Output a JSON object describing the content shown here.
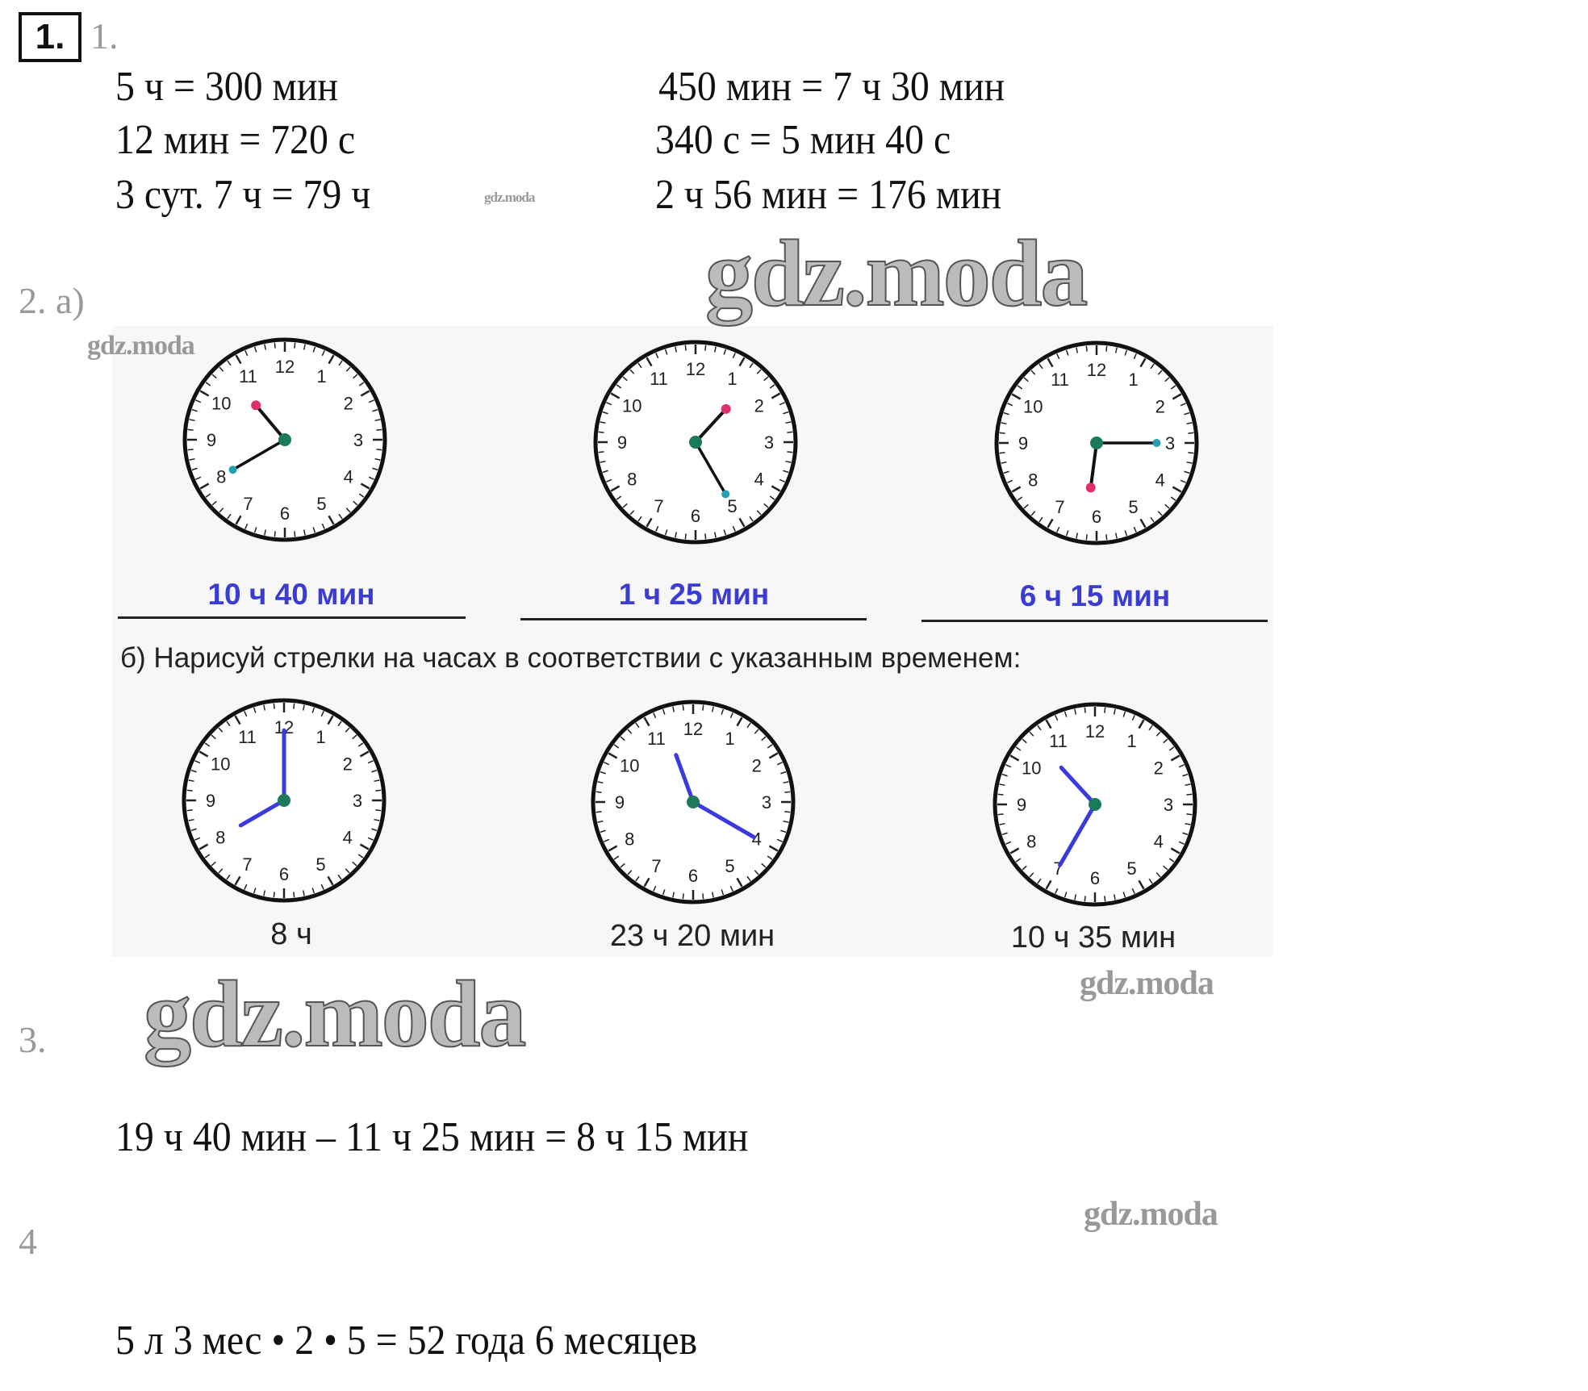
{
  "task1": {
    "badge": "1.",
    "label": "1.",
    "left": [
      "5 ч = 300 мин",
      "12 мин = 720 с",
      "3 сут. 7 ч = 79 ч"
    ],
    "right": [
      "450 мин = 7 ч 30 мин",
      "340 с = 5 мин 40 с",
      "2 ч 56 мин = 176 мин"
    ]
  },
  "task2": {
    "label_a": "2. а)",
    "clocks_a": [
      {
        "label": "10 ч 40 мин",
        "hour": 10,
        "minute": 40
      },
      {
        "label": "1 ч 25 мин",
        "hour": 1,
        "minute": 25
      },
      {
        "label": "6 ч 15 мин",
        "hour": 6,
        "minute": 15
      }
    ],
    "instruction_b": "б) Нарисуй стрелки на часах в соответствии с указанным временем:",
    "clocks_b": [
      {
        "label": "8 ч",
        "hour": 8,
        "minute": 0
      },
      {
        "label": "23 ч 20 мин",
        "hour": 23,
        "minute": 20
      },
      {
        "label": "10 ч 35 мин",
        "hour": 10,
        "minute": 35
      }
    ]
  },
  "task3": {
    "label": "3.",
    "equation": "19 ч 40 мин – 11 ч 25 мин = 8 ч 15 мин"
  },
  "task4": {
    "label": "4",
    "equation": "5 л 3 мес • 2 • 5 = 52 года 6 месяцев"
  },
  "watermarks": [
    "gdz.moda",
    "gdz.moda",
    "gdz.moda",
    "gdz.moda",
    "gdz.moda",
    "gdz.moda"
  ],
  "colors": {
    "answer_blue": "#3b3bd6",
    "hour_tip": "#e0306a",
    "minute_tip": "#20a0b0",
    "drawn_hands": "#3a3ae0",
    "center": "#1a7a5a"
  }
}
